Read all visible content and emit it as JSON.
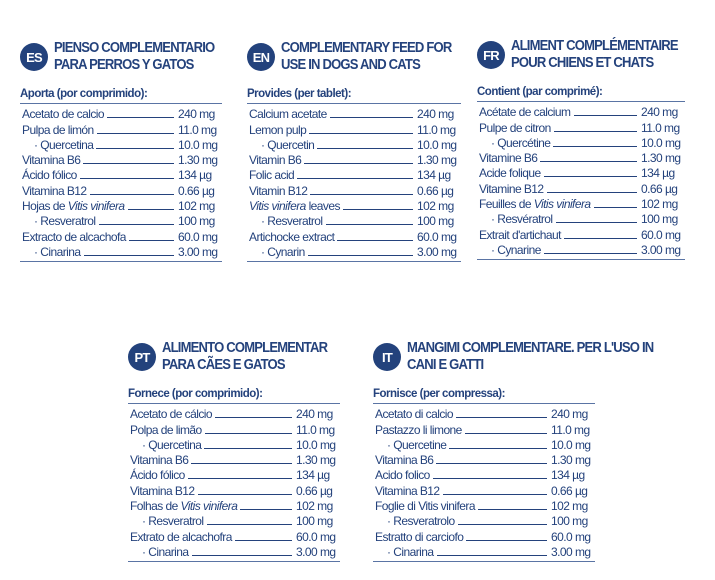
{
  "colors": {
    "text": "#24427c",
    "badge": "#23427c"
  },
  "panels": [
    {
      "code": "ES",
      "title1": "Pienso complementario",
      "title2": "para perros y gatos",
      "subtitle": "Aporta (por comprimido):",
      "rows": [
        {
          "label": "Acetato de calcio",
          "value": "240 mg"
        },
        {
          "label": "Pulpa de limón",
          "value": "11.0 mg"
        },
        {
          "label": "· Quercetina",
          "value": "10.0 mg",
          "indent": true
        },
        {
          "label": "Vitamina B6",
          "value": "1.30 mg"
        },
        {
          "label": "Ácido fólico",
          "value": "134 µg"
        },
        {
          "label": "Vitamina B12",
          "value": "0.66 µg"
        },
        {
          "label": "Hojas de ",
          "italic": "Vitis vinifera",
          "value": "102 mg"
        },
        {
          "label": "· Resveratrol",
          "value": "100 mg",
          "indent": true
        },
        {
          "label": "Extracto de alcachofa",
          "value": "60.0 mg"
        },
        {
          "label": "· Cinarina",
          "value": "3.00 mg",
          "indent": true
        }
      ]
    },
    {
      "code": "EN",
      "title1": "Complementary feed for",
      "title2": "use in dogs and cats",
      "subtitle": "Provides (per tablet):",
      "rows": [
        {
          "label": "Calcium acetate",
          "value": "240 mg"
        },
        {
          "label": "Lemon pulp",
          "value": "11.0 mg"
        },
        {
          "label": "· Quercetin",
          "value": "10.0 mg",
          "indent": true
        },
        {
          "label": "Vitamin B6",
          "value": "1.30 mg"
        },
        {
          "label": "Folic acid",
          "value": "134 µg"
        },
        {
          "label": "Vitamin B12",
          "value": "0.66 µg"
        },
        {
          "italic": "Vitis vinifera",
          "suffix": " leaves",
          "value": "102 mg"
        },
        {
          "label": "· Resveratrol",
          "value": "100 mg",
          "indent": true
        },
        {
          "label": "Artichocke extract",
          "value": "60.0 mg"
        },
        {
          "label": "· Cynarin",
          "value": "3.00 mg",
          "indent": true
        }
      ]
    },
    {
      "code": "FR",
      "title1": "Aliment complémentaire",
      "title2": "pour chiens et chats",
      "subtitle": "Contient (par comprimé):",
      "rows": [
        {
          "label": "Acétate de calcium",
          "value": "240 mg"
        },
        {
          "label": "Pulpe de citron",
          "value": "11.0 mg"
        },
        {
          "label": "· Quercétine",
          "value": "10.0 mg",
          "indent": true
        },
        {
          "label": "Vitamine B6",
          "value": "1.30 mg"
        },
        {
          "label": "Acide folique",
          "value": "134 µg"
        },
        {
          "label": "Vitamine B12",
          "value": "0.66 µg"
        },
        {
          "label": "Feuilles de ",
          "italic": "Vitis vinifera",
          "value": "102 mg"
        },
        {
          "label": "· Resvératrol",
          "value": "100 mg",
          "indent": true
        },
        {
          "label": "Extrait d'artichaut",
          "value": "60.0 mg"
        },
        {
          "label": "· Cynarine",
          "value": "3.00 mg",
          "indent": true
        }
      ]
    },
    {
      "code": "PT",
      "title1": "Alimento complementar",
      "title2": "para cães e gatos",
      "subtitle": "Fornece (por comprimido):",
      "rows": [
        {
          "label": "Acetato de cálcio",
          "value": "240 mg"
        },
        {
          "label": "Polpa de limão",
          "value": "11.0 mg"
        },
        {
          "label": "· Quercetina",
          "value": "10.0 mg",
          "indent": true
        },
        {
          "label": "Vitamina B6",
          "value": "1.30 mg"
        },
        {
          "label": "Ácido fólico",
          "value": "134 µg"
        },
        {
          "label": "Vitamina B12",
          "value": "0.66 µg"
        },
        {
          "label": "Folhas de ",
          "italic": "Vitis vinifera",
          "value": "102 mg"
        },
        {
          "label": "· Resveratrol",
          "value": "100 mg",
          "indent": true
        },
        {
          "label": "Extrato de alcachofra",
          "value": "60.0 mg"
        },
        {
          "label": "· Cinarina",
          "value": "3.00 mg",
          "indent": true
        }
      ]
    },
    {
      "code": "IT",
      "title1": "Mangimi complementare. Per l'uso in",
      "title2": "cani e gatti",
      "subtitle": "Fornisce (per compressa):",
      "rows": [
        {
          "label": "Acetato di calcio",
          "value": "240 mg"
        },
        {
          "label": "Pastazzo li limone",
          "value": "11.0 mg"
        },
        {
          "label": "· Quercetine",
          "value": "10.0 mg",
          "indent": true
        },
        {
          "label": "Vitamina B6",
          "value": "1.30 mg"
        },
        {
          "label": "Acido folico",
          "value": "134 µg"
        },
        {
          "label": "Vitamina B12",
          "value": "0.66 µg"
        },
        {
          "label": "Foglie di Vitis vinifera",
          "value": "102 mg"
        },
        {
          "label": "· Resveratrolo",
          "value": "100 mg",
          "indent": true
        },
        {
          "label": "Estratto di carciofo",
          "value": "60.0 mg"
        },
        {
          "label": "· Cinarina",
          "value": "3.00 mg",
          "indent": true
        }
      ]
    }
  ]
}
